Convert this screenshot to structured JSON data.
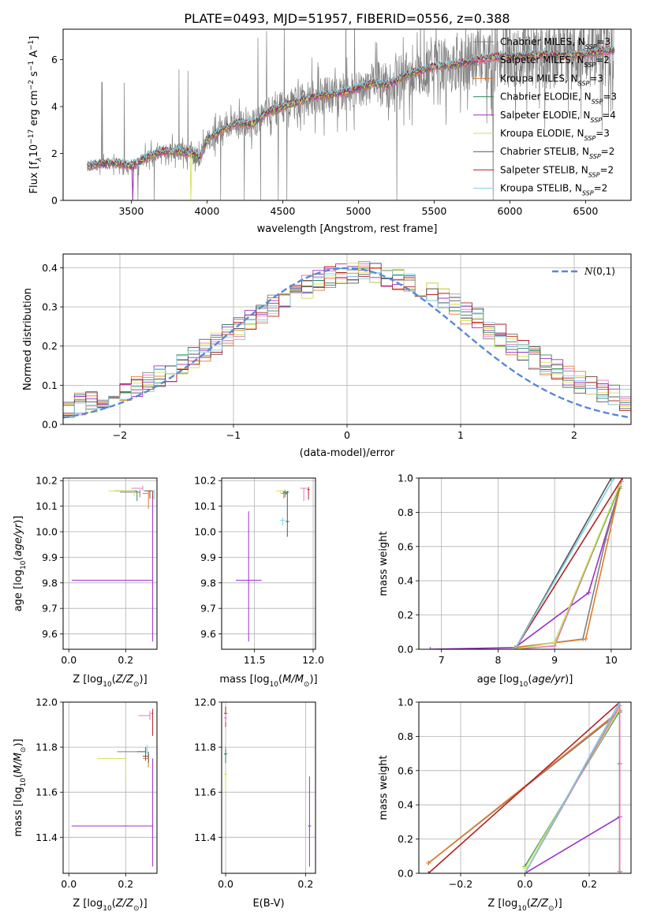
{
  "title": "PLATE=0493, MJD=51957, FIBERID=0556, z=0.388",
  "series": [
    {
      "name": "Chabrier MILES, N$_{SSP}$=3",
      "color": "#7f7f7f",
      "label": "Chabrier MILES, N",
      "sub": "SSP",
      "suffix": "=3"
    },
    {
      "name": "Salpeter MILES, N$_{SSP}$=2",
      "color": "#e377c2",
      "label": "Salpeter MILES, N",
      "sub": "SSP",
      "suffix": "=2"
    },
    {
      "name": "Kroupa MILES, N$_{SSP}$=3",
      "color": "#e07b2a",
      "label": "Kroupa MILES, N",
      "sub": "SSP",
      "suffix": "=3"
    },
    {
      "name": "Chabrier ELODIE, N$_{SSP}$=3",
      "color": "#2e8b57",
      "label": "Chabrier ELODIE, N",
      "sub": "SSP",
      "suffix": "=3"
    },
    {
      "name": "Salpeter ELODIE, N$_{SSP}$=4",
      "color": "#9b30c8",
      "label": "Salpeter ELODIE, N",
      "sub": "SSP",
      "suffix": "=4"
    },
    {
      "name": "Kroupa ELODIE, N$_{SSP}$=3",
      "color": "#d4e157",
      "label": "Kroupa ELODIE, N",
      "sub": "SSP",
      "suffix": "=3"
    },
    {
      "name": "Chabrier STELIB, N$_{SSP}$=2",
      "color": "#555555",
      "label": "Chabrier STELIB, N",
      "sub": "SSP",
      "suffix": "=2"
    },
    {
      "name": "Salpeter STELIB, N$_{SSP}$=2",
      "color": "#b22222",
      "label": "Salpeter STELIB, N",
      "sub": "SSP",
      "suffix": "=2"
    },
    {
      "name": "Kroupa STELIB, N$_{SSP}$=2",
      "color": "#7fcfdf",
      "label": "Kroupa STELIB, N",
      "sub": "SSP",
      "suffix": "=2"
    }
  ],
  "chart_data": [
    {
      "id": "spectrum",
      "type": "line",
      "xlabel": "wavelength [Angstrom, rest frame]",
      "ylabel_parts": {
        "pre": "Flux [f",
        "sub": "λ",
        "mid": "10",
        "sup1": "−17",
        "post": " erg cm",
        "sup2": "−2",
        "post2": " s",
        "sup3": "−1",
        "post3": " A",
        "sup4": "−1",
        "end": "]"
      },
      "xlim": [
        3050,
        6800
      ],
      "ylim": [
        0,
        7.3
      ],
      "xticks": [
        3500,
        4000,
        4500,
        5000,
        5500,
        6000,
        6500
      ],
      "yticks": [
        0,
        2,
        4,
        6
      ],
      "model_knots": [
        [
          3200,
          1.45
        ],
        [
          3300,
          1.55
        ],
        [
          3400,
          1.6
        ],
        [
          3500,
          1.45
        ],
        [
          3600,
          1.85
        ],
        [
          3700,
          2.05
        ],
        [
          3800,
          2.1
        ],
        [
          3900,
          2.0
        ],
        [
          3950,
          1.75
        ],
        [
          4000,
          2.6
        ],
        [
          4100,
          3.0
        ],
        [
          4200,
          3.3
        ],
        [
          4300,
          3.25
        ],
        [
          4400,
          3.75
        ],
        [
          4500,
          4.0
        ],
        [
          4600,
          4.2
        ],
        [
          4700,
          4.4
        ],
        [
          4800,
          4.5
        ],
        [
          4900,
          4.6
        ],
        [
          5000,
          4.8
        ],
        [
          5100,
          5.0
        ],
        [
          5200,
          4.9
        ],
        [
          5300,
          5.3
        ],
        [
          5400,
          5.5
        ],
        [
          5500,
          5.7
        ],
        [
          5600,
          5.75
        ],
        [
          5700,
          5.85
        ],
        [
          5800,
          6.0
        ],
        [
          5900,
          6.1
        ],
        [
          6000,
          6.15
        ],
        [
          6100,
          6.15
        ],
        [
          6200,
          6.2
        ],
        [
          6300,
          6.2
        ],
        [
          6400,
          6.2
        ],
        [
          6500,
          6.25
        ],
        [
          6600,
          6.35
        ],
        [
          6680,
          6.4
        ]
      ],
      "data_xrange": [
        3210,
        6690
      ]
    },
    {
      "id": "residuals",
      "type": "step",
      "xlabel": "(data-model)/error",
      "ylabel": "Normed distribution",
      "xlim": [
        -2.5,
        2.5
      ],
      "ylim": [
        0,
        0.435
      ],
      "xticks": [
        -2,
        -1,
        0,
        1,
        2
      ],
      "yticks": [
        0.0,
        0.1,
        0.2,
        0.3,
        0.4
      ],
      "gaussian_label": "N(0,1)",
      "gaussian_color": "#5b87d8",
      "bin_width": 0.1
    },
    {
      "id": "age-vs-Z",
      "type": "errorbar",
      "xlabel": "Z [log10(Z/Z⊙)]",
      "ylabel": "age  [log10(age/yr)]",
      "xlim": [
        -0.02,
        0.31
      ],
      "ylim": [
        9.54,
        10.21
      ],
      "xticks": [
        0.0,
        0.2
      ],
      "yticks": [
        9.6,
        9.7,
        9.8,
        9.9,
        10.0,
        10.1,
        10.2
      ],
      "points": [
        {
          "s": 4,
          "x": 0.295,
          "y": 9.81,
          "xerr": 0.285,
          "yerr": [
            0.24,
            0.33
          ]
        },
        {
          "s": 0,
          "x": 0.25,
          "y": 10.155,
          "xerr": 0.07,
          "yerr": [
            0.02,
            0.01
          ]
        },
        {
          "s": 1,
          "x": 0.26,
          "y": 10.17,
          "xerr": 0.04,
          "yerr": [
            0.01,
            0.01
          ]
        },
        {
          "s": 2,
          "x": 0.28,
          "y": 10.15,
          "xerr": 0.02,
          "yerr": [
            0.06,
            0.01
          ]
        },
        {
          "s": 3,
          "x": 0.24,
          "y": 10.16,
          "xerr": 0.08,
          "yerr": [
            0.04,
            0.0
          ]
        },
        {
          "s": 5,
          "x": 0.23,
          "y": 10.16,
          "xerr": 0.09,
          "yerr": [
            0.02,
            0.0
          ]
        },
        {
          "s": 6,
          "x": 0.285,
          "y": 10.16,
          "xerr": 0.02,
          "yerr": [
            0.03,
            0.0
          ]
        },
        {
          "s": 7,
          "x": 0.295,
          "y": 10.16,
          "xerr": 0.01,
          "yerr": [
            0.03,
            0.0
          ]
        },
        {
          "s": 8,
          "x": 0.3,
          "y": 10.155,
          "xerr": 0.005,
          "yerr": [
            0.03,
            0.01
          ]
        }
      ]
    },
    {
      "id": "age-vs-mass",
      "type": "errorbar",
      "xlabel": "mass [log10(M/M⊙)]",
      "ylabel": "",
      "xlim": [
        11.22,
        12.02
      ],
      "ylim": [
        9.54,
        10.21
      ],
      "xticks": [
        11.5,
        12.0
      ],
      "yticks": [
        9.6,
        9.7,
        9.8,
        9.9,
        10.0,
        10.1,
        10.2
      ],
      "points": [
        {
          "s": 4,
          "x": 11.45,
          "y": 9.81,
          "xerr": 0.22,
          "yerr": [
            0.24,
            0.27
          ]
        },
        {
          "s": 0,
          "x": 11.76,
          "y": 10.155,
          "xerr": 0.04,
          "yerr": [
            0.02,
            0.01
          ]
        },
        {
          "s": 1,
          "x": 11.92,
          "y": 10.17,
          "xerr": 0.06,
          "yerr": [
            0.05,
            0.0
          ]
        },
        {
          "s": 2,
          "x": 11.75,
          "y": 10.15,
          "xerr": 0.05,
          "yerr": [
            0.02,
            0.01
          ]
        },
        {
          "s": 3,
          "x": 11.77,
          "y": 10.155,
          "xerr": 0.05,
          "yerr": [
            0.01,
            0.0
          ]
        },
        {
          "s": 5,
          "x": 11.72,
          "y": 10.16,
          "xerr": 0.08,
          "yerr": [
            0.01,
            0.0
          ]
        },
        {
          "s": 6,
          "x": 11.78,
          "y": 10.04,
          "xerr": 0.03,
          "yerr": [
            0.06,
            0.12
          ]
        },
        {
          "s": 7,
          "x": 11.96,
          "y": 10.165,
          "xerr": 0.02,
          "yerr": [
            0.04,
            0.01
          ]
        },
        {
          "s": 8,
          "x": 11.74,
          "y": 10.045,
          "xerr": 0.04,
          "yerr": [
            0.02,
            0.01
          ]
        }
      ]
    },
    {
      "id": "mass-weight-vs-age",
      "type": "line",
      "xlabel": "age  [log10(age/yr)]",
      "ylabel": "mass weight",
      "xlim": [
        6.6,
        10.35
      ],
      "ylim": [
        0,
        1.0
      ],
      "xticks": [
        7,
        8,
        9,
        10
      ],
      "yticks": [
        0.0,
        0.2,
        0.4,
        0.6,
        0.8,
        1.0
      ],
      "lines": [
        {
          "s": 4,
          "pts": [
            [
              6.8,
              0.0
            ],
            [
              8.3,
              0.01
            ],
            [
              9.6,
              0.33
            ],
            [
              10.15,
              0.94
            ]
          ]
        },
        {
          "s": 0,
          "pts": [
            [
              8.3,
              0.01
            ],
            [
              9.5,
              0.06
            ],
            [
              9.9,
              0.64
            ],
            [
              10.15,
              0.94
            ]
          ]
        },
        {
          "s": 2,
          "pts": [
            [
              8.3,
              0.01
            ],
            [
              9.55,
              0.06
            ],
            [
              10.15,
              0.94
            ]
          ]
        },
        {
          "s": 1,
          "pts": [
            [
              8.3,
              0.0
            ],
            [
              9.0,
              0.02
            ],
            [
              10.18,
              0.98
            ]
          ]
        },
        {
          "s": 3,
          "pts": [
            [
              8.3,
              0.0
            ],
            [
              9.0,
              0.04
            ],
            [
              10.15,
              0.95
            ]
          ]
        },
        {
          "s": 5,
          "pts": [
            [
              8.3,
              0.0
            ],
            [
              9.0,
              0.04
            ],
            [
              10.15,
              0.96
            ]
          ]
        },
        {
          "s": 6,
          "pts": [
            [
              8.3,
              0.0
            ],
            [
              10.0,
              1.0
            ]
          ]
        },
        {
          "s": 7,
          "pts": [
            [
              8.3,
              0.0
            ],
            [
              10.2,
              1.0
            ]
          ]
        },
        {
          "s": 8,
          "pts": [
            [
              8.3,
              0.0
            ],
            [
              10.05,
              1.0
            ]
          ]
        }
      ]
    },
    {
      "id": "mass-vs-Z",
      "type": "errorbar",
      "xlabel": "Z [log10(Z/Z⊙)]",
      "ylabel": "mass [log10(M/M⊙)]",
      "xlim": [
        -0.02,
        0.31
      ],
      "ylim": [
        11.24,
        12.0
      ],
      "xticks": [
        0.0,
        0.2
      ],
      "yticks": [
        11.4,
        11.6,
        11.8,
        12.0
      ],
      "points": [
        {
          "s": 4,
          "x": 0.295,
          "y": 11.45,
          "xerr": 0.285,
          "yerr": [
            0.18,
            0.3
          ]
        },
        {
          "s": 0,
          "x": 0.27,
          "y": 11.78,
          "xerr": 0.1,
          "yerr": [
            0.04,
            0.02
          ]
        },
        {
          "s": 1,
          "x": 0.285,
          "y": 11.94,
          "xerr": 0.04,
          "yerr": [
            0.02,
            0.02
          ]
        },
        {
          "s": 2,
          "x": 0.28,
          "y": 11.75,
          "xerr": 0.02,
          "yerr": [
            0.04,
            0.02
          ]
        },
        {
          "s": 3,
          "x": 0.27,
          "y": 11.78,
          "xerr": 0.03,
          "yerr": [
            0.04,
            0.02
          ]
        },
        {
          "s": 5,
          "x": 0.2,
          "y": 11.75,
          "xerr": 0.1,
          "yerr": [
            0.1,
            0.0
          ]
        },
        {
          "s": 6,
          "x": 0.28,
          "y": 11.76,
          "xerr": 0.02,
          "yerr": [
            0.03,
            0.02
          ]
        },
        {
          "s": 7,
          "x": 0.295,
          "y": 11.95,
          "xerr": 0.005,
          "yerr": [
            0.1,
            0.02
          ]
        },
        {
          "s": 8,
          "x": 0.275,
          "y": 11.79,
          "xerr": 0.005,
          "yerr": [
            0.02,
            0.02
          ]
        }
      ]
    },
    {
      "id": "mass-vs-ebv",
      "type": "errorbar",
      "xlabel": "E(B-V)",
      "ylabel": "",
      "xlim": [
        -0.01,
        0.225
      ],
      "ylim": [
        11.24,
        12.0
      ],
      "xticks": [
        0.0,
        0.2
      ],
      "yticks": [
        11.4,
        11.6,
        11.8,
        12.0
      ],
      "points": [
        {
          "s": 4,
          "x": 0.21,
          "y": 11.45,
          "xerr": 0,
          "yerr": [
            0.18,
            0.22
          ]
        },
        {
          "s": 7,
          "x": 0.0,
          "y": 11.95,
          "xerr": 0,
          "yerr": [
            0.06,
            0.03
          ]
        },
        {
          "s": 1,
          "x": 0.0,
          "y": 11.93,
          "xerr": 0,
          "yerr": [
            0.02,
            0.02
          ]
        },
        {
          "s": 0,
          "x": 0.0,
          "y": 11.77,
          "xerr": 0,
          "yerr": [
            0.04,
            0.03
          ]
        },
        {
          "s": 3,
          "x": 0.0,
          "y": 11.77,
          "xerr": 0,
          "yerr": [
            0.04,
            0.02
          ]
        },
        {
          "s": 5,
          "x": 0.0,
          "y": 11.68,
          "xerr": 0,
          "yerr": [
            0.08,
            0.0
          ]
        }
      ]
    },
    {
      "id": "mass-weight-vs-Z",
      "type": "line",
      "xlabel": "Z [log10(Z/Z⊙)]",
      "ylabel": "mass weight",
      "xlim": [
        -0.33,
        0.33
      ],
      "ylim": [
        0,
        1.0
      ],
      "xticks": [
        -0.2,
        0.0,
        0.2
      ],
      "yticks": [
        0.0,
        0.2,
        0.4,
        0.6,
        0.8,
        1.0
      ],
      "lines": [
        {
          "s": 4,
          "pts": [
            [
              0.0,
              0.0
            ],
            [
              0.295,
              0.33
            ],
            [
              0.295,
              0.64
            ],
            [
              0.295,
              0.94
            ],
            [
              0.295,
              0.01
            ]
          ]
        },
        {
          "s": 0,
          "pts": [
            [
              -0.3,
              0.06
            ],
            [
              0.295,
              0.94
            ],
            [
              0.295,
              0.64
            ],
            [
              0.295,
              0.01
            ]
          ]
        },
        {
          "s": 2,
          "pts": [
            [
              -0.3,
              0.06
            ],
            [
              0.295,
              0.95
            ],
            [
              0.295,
              0.01
            ]
          ]
        },
        {
          "s": 3,
          "pts": [
            [
              0.0,
              0.04
            ],
            [
              0.295,
              0.95
            ],
            [
              0.295,
              0.01
            ]
          ]
        },
        {
          "s": 5,
          "pts": [
            [
              0.0,
              0.03
            ],
            [
              0.295,
              0.96
            ],
            [
              0.295,
              0.01
            ]
          ]
        },
        {
          "s": 1,
          "pts": [
            [
              0.0,
              0.0
            ],
            [
              0.295,
              0.98
            ],
            [
              0.295,
              0.01
            ]
          ]
        },
        {
          "s": 6,
          "pts": [
            [
              0.0,
              0.0
            ],
            [
              0.295,
              1.0
            ]
          ]
        },
        {
          "s": 7,
          "pts": [
            [
              -0.3,
              0.0
            ],
            [
              0.295,
              1.0
            ]
          ]
        },
        {
          "s": 8,
          "pts": [
            [
              0.0,
              0.0
            ],
            [
              0.295,
              1.0
            ]
          ]
        }
      ]
    }
  ]
}
